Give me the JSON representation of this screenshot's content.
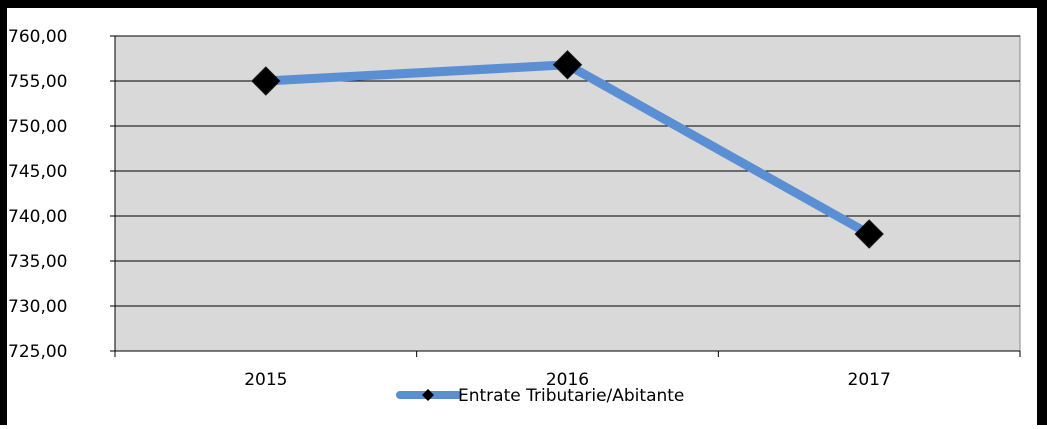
{
  "chart_data": {
    "type": "line",
    "categories": [
      "2015",
      "2016",
      "2017"
    ],
    "series": [
      {
        "name": "Entrate Tributarie/Abitante",
        "values": [
          755.0,
          756.8,
          738.0
        ]
      }
    ],
    "title": "",
    "xlabel": "",
    "ylabel": "",
    "ylim": [
      725,
      760
    ],
    "yticks": [
      "760,00",
      "755,00",
      "750,00",
      "745,00",
      "740,00",
      "735,00",
      "730,00",
      "725,00"
    ],
    "grid": true,
    "legend_position": "bottom",
    "colors": {
      "plot_background": "#d9d9d9",
      "line": "#5b8fd4",
      "marker": "#000000",
      "gridline": "#000000",
      "frame": "#000000"
    },
    "marker": "diamond"
  }
}
